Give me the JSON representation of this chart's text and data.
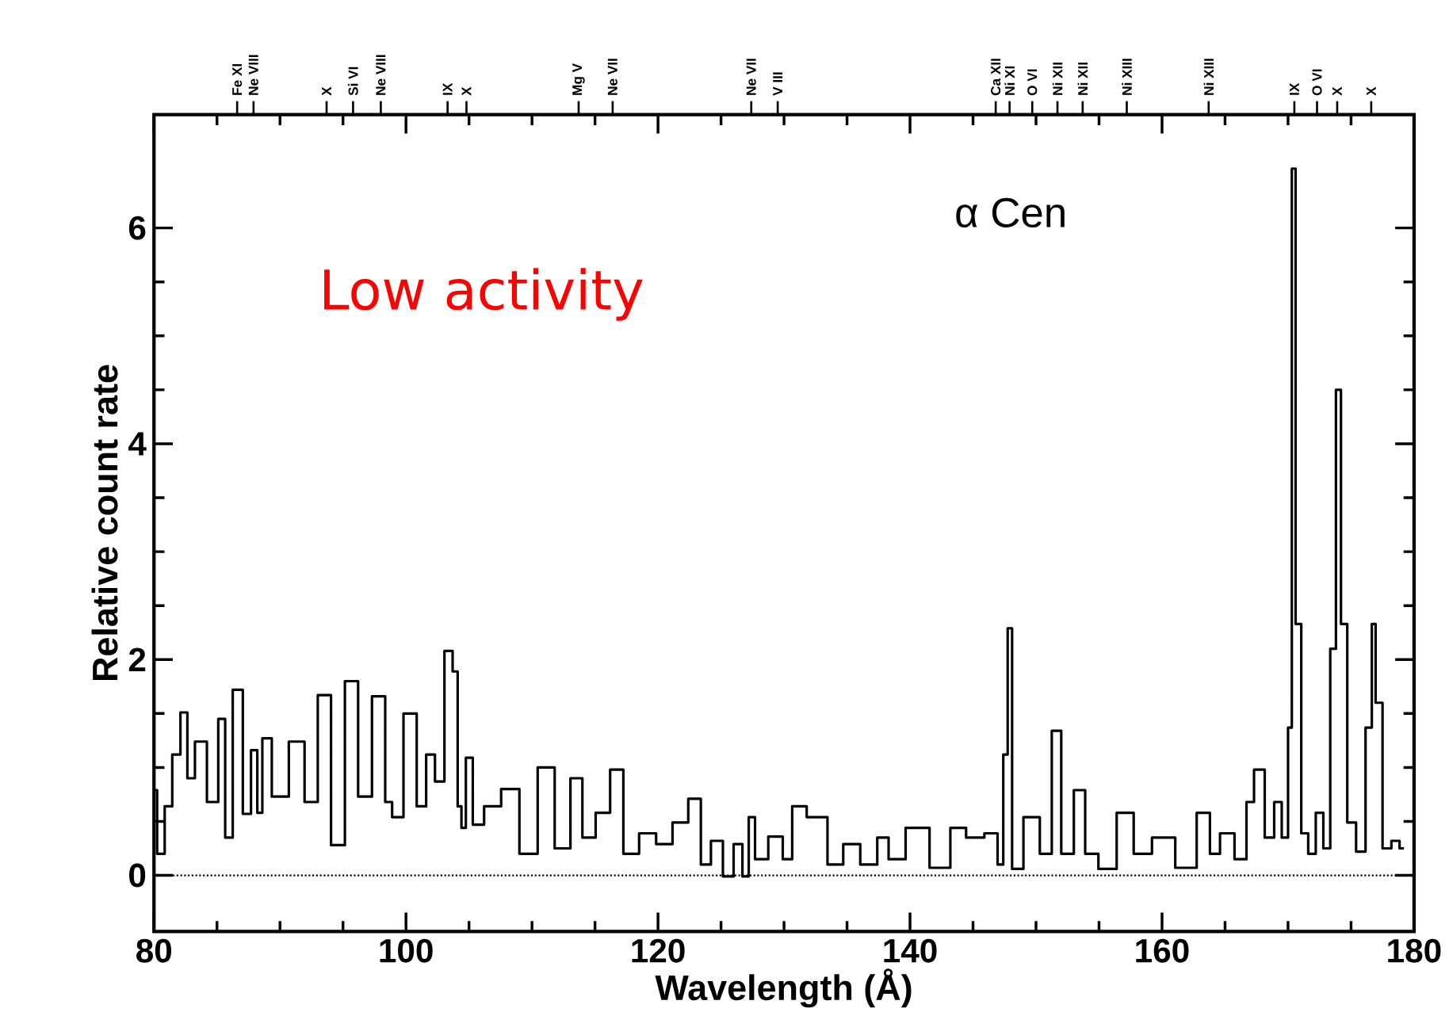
{
  "chart_data": {
    "type": "step",
    "xlabel": "Wavelength (Å)",
    "ylabel": "Relative count rate",
    "annotations": [
      "α Cen",
      "Low activity",
      {
        "text": "Fe XI",
        "x": 86.6
      },
      {
        "text": "Ne VIII",
        "x": 87.9
      },
      {
        "text": "X",
        "x": 93.7
      },
      {
        "text": "Si VI",
        "x": 95.8
      },
      {
        "text": "Ne VIII",
        "x": 98.0
      },
      {
        "text": "IX",
        "x": 103.3
      },
      {
        "text": "X",
        "x": 104.8
      },
      {
        "text": "Mg V",
        "x": 113.7
      },
      {
        "text": "Ne VII",
        "x": 116.4
      },
      {
        "text": "Ne VII",
        "x": 127.4
      },
      {
        "text": "V III",
        "x": 129.5
      },
      {
        "text": "Ca XII",
        "x": 146.8
      },
      {
        "text": "Ni XI",
        "x": 147.9
      },
      {
        "text": "O VI",
        "x": 149.7
      },
      {
        "text": "Ni XII",
        "x": 151.7
      },
      {
        "text": "Ni XII",
        "x": 153.7
      },
      {
        "text": "Ni XIII",
        "x": 157.2
      },
      {
        "text": "Ni XIII",
        "x": 163.7
      },
      {
        "text": "IX",
        "x": 170.5
      },
      {
        "text": "O VI",
        "x": 172.3
      },
      {
        "text": "X",
        "x": 173.9
      },
      {
        "text": "X",
        "x": 176.6
      }
    ],
    "xlim": [
      80,
      180
    ],
    "xticks": [
      80,
      100,
      120,
      140,
      160,
      180
    ],
    "ylim": [
      -0.52,
      7.05
    ],
    "yticks": [
      0,
      2,
      4,
      6
    ],
    "ref_lines": [
      {
        "axis": "y",
        "value": 0,
        "line_style": "dotted"
      }
    ],
    "color": "#000000",
    "x": [
      80.0,
      80.5,
      81.2,
      81.7,
      82.5,
      82.8,
      83.7,
      84.7,
      85.5,
      85.8,
      86.7,
      87.4,
      88.0,
      88.4,
      88.8,
      89.9,
      91.5,
      92.4,
      93.6,
      94.5,
      95.8,
      96.6,
      98.0,
      98.7,
      99.1,
      100.5,
      101.2,
      102.0,
      102.6,
      103.5,
      103.9,
      104.3,
      104.5,
      105.0,
      105.6,
      106.8,
      108.3,
      109.7,
      111.2,
      112.4,
      113.7,
      114.3,
      115.8,
      116.6,
      117.9,
      119.1,
      120.6,
      121.7,
      123.1,
      123.7,
      124.7,
      125.6,
      126.4,
      127.0,
      127.4,
      128.0,
      129.5,
      130.3,
      131.0,
      132.6,
      134.3,
      135.1,
      137.0,
      137.8,
      138.8,
      140.5,
      142.6,
      143.8,
      145.1,
      146.7,
      147.2,
      147.6,
      147.9,
      148.3,
      149.7,
      150.9,
      151.6,
      152.4,
      153.6,
      154.2,
      155.7,
      157.1,
      158.4,
      160.0,
      162.1,
      163.4,
      164.2,
      165.0,
      166.5,
      166.9,
      167.7,
      168.6,
      169.2,
      169.8,
      170.2,
      170.4,
      170.8,
      171.3,
      171.9,
      172.5,
      173.1,
      173.6,
      174.0,
      174.4,
      175.0,
      175.8,
      176.5,
      176.8,
      177.1,
      177.9,
      178.5,
      179.2
    ],
    "values": [
      0.79,
      0.2,
      0.64,
      1.12,
      1.51,
      0.9,
      1.24,
      0.68,
      1.45,
      0.35,
      1.72,
      0.57,
      1.16,
      0.58,
      1.27,
      0.73,
      1.24,
      0.68,
      1.67,
      0.28,
      1.8,
      0.73,
      1.66,
      0.68,
      0.54,
      1.5,
      0.64,
      1.12,
      0.87,
      2.08,
      1.89,
      0.64,
      0.44,
      1.09,
      0.47,
      0.64,
      0.8,
      0.2,
      1.0,
      0.25,
      0.9,
      0.35,
      0.58,
      0.98,
      0.2,
      0.39,
      0.29,
      0.49,
      0.71,
      0.1,
      0.32,
      -0.01,
      0.29,
      -0.01,
      0.54,
      0.15,
      0.36,
      0.15,
      0.64,
      0.54,
      0.1,
      0.29,
      0.1,
      0.35,
      0.15,
      0.44,
      0.07,
      0.44,
      0.35,
      0.39,
      0.1,
      1.12,
      2.29,
      0.06,
      0.54,
      0.2,
      1.34,
      0.2,
      0.79,
      0.2,
      0.06,
      0.58,
      0.2,
      0.35,
      0.07,
      0.58,
      0.2,
      0.39,
      0.15,
      0.68,
      0.98,
      0.35,
      0.68,
      0.35,
      1.37,
      6.55,
      2.33,
      0.39,
      0.2,
      0.58,
      0.25,
      2.1,
      4.5,
      2.33,
      0.49,
      0.22,
      1.37,
      2.33,
      1.6,
      0.25,
      0.32,
      0.25
    ]
  }
}
